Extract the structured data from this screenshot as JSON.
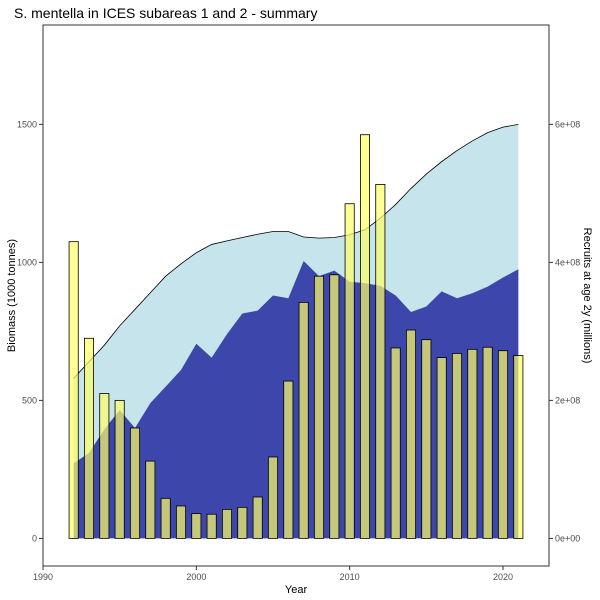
{
  "chart_data": {
    "type": "bar+area",
    "title": "S. mentella in ICES subareas 1 and 2 - summary",
    "xlabel": "Year",
    "ylabel": "Biomass (1000 tonnes)",
    "y2label": "Recruits at age 2y (millions)",
    "xlim": [
      1990,
      2023
    ],
    "ylim": [
      -100,
      1860
    ],
    "y2lim": [
      -40000000,
      744000000
    ],
    "x_ticks": [
      1990,
      2000,
      2010,
      2020
    ],
    "y_ticks": [
      0,
      500,
      1000,
      1500
    ],
    "y2_ticks": [
      {
        "value": 0,
        "label": "0e+00"
      },
      {
        "value": 200000000,
        "label": "2e+08"
      },
      {
        "value": 400000000,
        "label": "4e+08"
      },
      {
        "value": 600000000,
        "label": "6e+08"
      }
    ],
    "years": [
      1992,
      1993,
      1994,
      1995,
      1996,
      1997,
      1998,
      1999,
      2000,
      2001,
      2002,
      2003,
      2004,
      2005,
      2006,
      2007,
      2008,
      2009,
      2010,
      2011,
      2012,
      2013,
      2014,
      2015,
      2016,
      2017,
      2018,
      2019,
      2020,
      2021
    ],
    "series": [
      {
        "kind": "area",
        "color": "#c6e4ec",
        "outline": "#000000",
        "values": [
          580,
          640,
          700,
          770,
          830,
          890,
          950,
          995,
          1035,
          1065,
          1078,
          1090,
          1102,
          1112,
          1112,
          1092,
          1088,
          1090,
          1100,
          1118,
          1160,
          1210,
          1268,
          1320,
          1365,
          1405,
          1440,
          1470,
          1490,
          1500
        ]
      },
      {
        "kind": "area",
        "color": "#3c46ab",
        "outline": null,
        "values": [
          272,
          310,
          395,
          465,
          400,
          490,
          550,
          610,
          705,
          655,
          740,
          815,
          825,
          880,
          870,
          1005,
          950,
          970,
          930,
          925,
          915,
          880,
          820,
          840,
          895,
          870,
          888,
          912,
          945,
          975
        ]
      },
      {
        "kind": "bar",
        "axis": "y2",
        "color": "#ffff66",
        "opacity": 0.7,
        "outline": "#000000",
        "values": [
          430000000,
          290000000,
          210000000,
          200000000,
          160000000,
          112000000,
          58000000,
          47000000,
          36000000,
          35000000,
          42000000,
          45000000,
          60000000,
          118000000,
          228000000,
          342000000,
          380000000,
          382000000,
          485000000,
          585000000,
          513000000,
          276000000,
          302000000,
          288000000,
          262000000,
          268000000,
          274000000,
          277000000,
          272000000,
          265000000
        ]
      }
    ]
  }
}
